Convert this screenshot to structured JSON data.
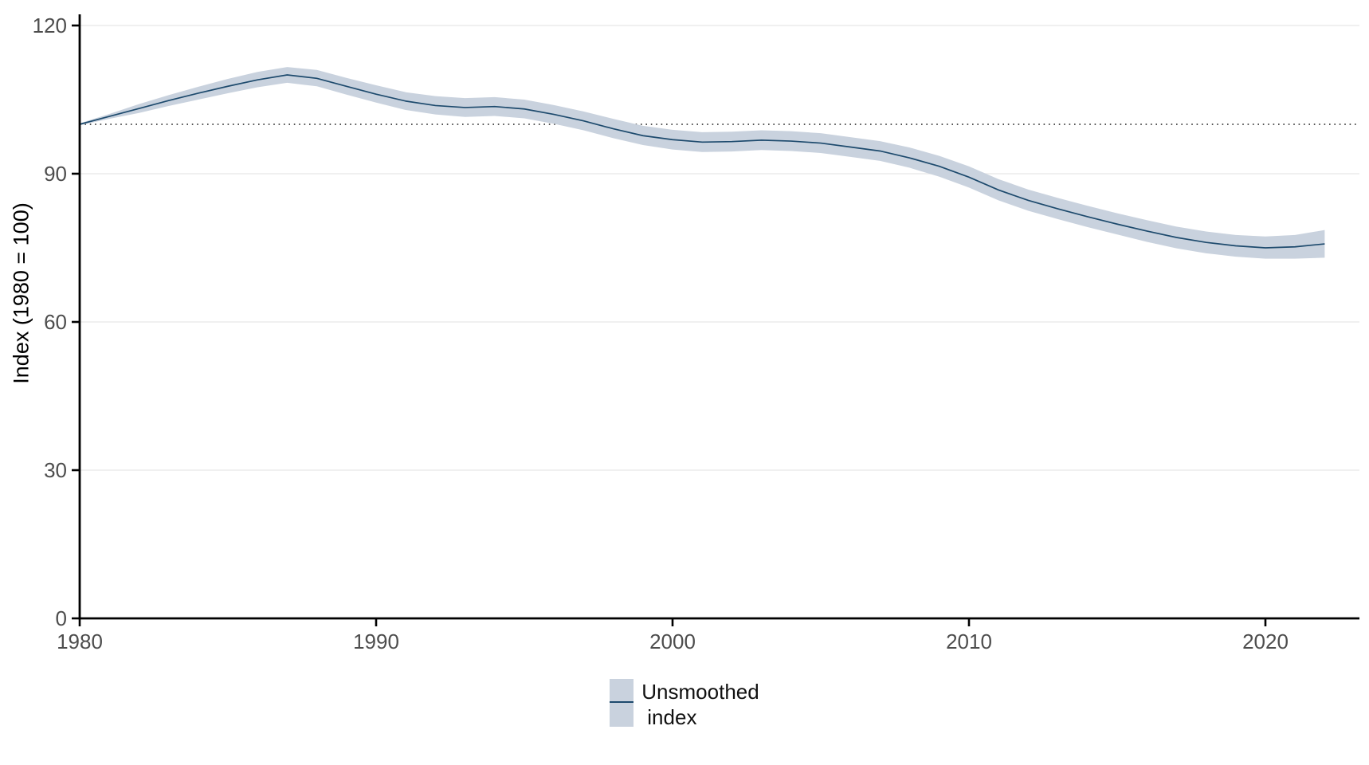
{
  "chart_data": {
    "type": "line",
    "title": "",
    "xlabel": "",
    "x_axis": {
      "ticks": [
        1980,
        1990,
        2000,
        2010,
        2020
      ],
      "labels": [
        "1980",
        "1990",
        "2000",
        "2010",
        "2020"
      ],
      "range": [
        1980,
        2023.2
      ]
    },
    "y_axis": {
      "title": "Index (1980 = 100)",
      "ticks": [
        0,
        30,
        60,
        90,
        120
      ],
      "labels": [
        "0",
        "30",
        "60",
        "90",
        "120"
      ],
      "range": [
        0,
        120
      ]
    },
    "grid": "horizontal-only",
    "reference_line": {
      "y": 100,
      "style": "dotted"
    },
    "legend": {
      "position": "bottom-center",
      "entries": [
        {
          "label": "Unsmoothed index",
          "label_lines": [
            "Unsmoothed",
            "index"
          ],
          "swatch": "band-with-line"
        }
      ]
    },
    "series": [
      {
        "name": "Unsmoothed index",
        "x": [
          1980,
          1981,
          1982,
          1983,
          1984,
          1985,
          1986,
          1987,
          1988,
          1989,
          1990,
          1991,
          1992,
          1993,
          1994,
          1995,
          1996,
          1997,
          1998,
          1999,
          2000,
          2001,
          2002,
          2003,
          2004,
          2005,
          2006,
          2007,
          2008,
          2009,
          2010,
          2011,
          2012,
          2013,
          2014,
          2015,
          2016,
          2017,
          2018,
          2019,
          2020,
          2021,
          2022
        ],
        "values": [
          100.0,
          101.6,
          103.2,
          104.8,
          106.3,
          107.7,
          109.0,
          110.0,
          109.3,
          107.7,
          106.1,
          104.7,
          103.8,
          103.4,
          103.6,
          103.1,
          102.0,
          100.7,
          99.1,
          97.7,
          96.9,
          96.4,
          96.5,
          96.8,
          96.6,
          96.2,
          95.4,
          94.6,
          93.2,
          91.5,
          89.3,
          86.7,
          84.6,
          82.9,
          81.3,
          79.8,
          78.4,
          77.1,
          76.1,
          75.4,
          75.0,
          75.2,
          75.8
        ],
        "band_upper": [
          100.2,
          102.1,
          104.1,
          105.9,
          107.6,
          109.2,
          110.6,
          111.6,
          111.0,
          109.4,
          107.9,
          106.5,
          105.7,
          105.3,
          105.5,
          105.0,
          103.9,
          102.6,
          101.1,
          99.7,
          98.9,
          98.4,
          98.5,
          98.8,
          98.6,
          98.2,
          97.4,
          96.6,
          95.3,
          93.6,
          91.5,
          88.9,
          86.8,
          85.1,
          83.5,
          82.0,
          80.6,
          79.3,
          78.3,
          77.6,
          77.3,
          77.6,
          78.6
        ],
        "band_lower": [
          99.8,
          101.1,
          102.3,
          103.7,
          105.0,
          106.3,
          107.5,
          108.4,
          107.7,
          106.0,
          104.4,
          102.9,
          102.0,
          101.5,
          101.7,
          101.2,
          100.1,
          98.8,
          97.2,
          95.8,
          94.9,
          94.4,
          94.5,
          94.8,
          94.6,
          94.2,
          93.4,
          92.6,
          91.2,
          89.4,
          87.2,
          84.6,
          82.5,
          80.8,
          79.2,
          77.7,
          76.2,
          74.9,
          73.9,
          73.2,
          72.8,
          72.8,
          73.0
        ]
      }
    ],
    "colors": {
      "band": "#c9d2de",
      "line": "#1d4a6d",
      "grid": "#ebebeb",
      "axis": "#000000",
      "tick_label": "#4d4d4d",
      "reference": "#1a1a1a"
    }
  }
}
